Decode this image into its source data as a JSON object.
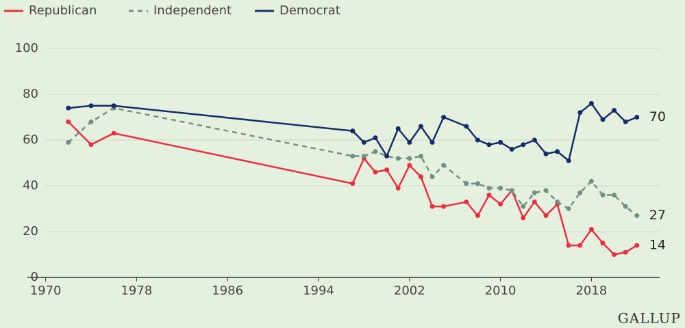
{
  "chart_data": {
    "type": "line",
    "x": [
      1972,
      1974,
      1976,
      1997,
      1998,
      1999,
      2000,
      2001,
      2002,
      2003,
      2004,
      2005,
      2007,
      2008,
      2009,
      2010,
      2011,
      2012,
      2013,
      2014,
      2015,
      2016,
      2017,
      2018,
      2019,
      2020,
      2021,
      2022
    ],
    "series": [
      {
        "name": "Republican",
        "color": "#e8303f",
        "dash": false,
        "values": [
          68,
          58,
          63,
          41,
          52,
          46,
          47,
          39,
          49,
          44,
          31,
          31,
          33,
          27,
          36,
          32,
          38,
          26,
          33,
          27,
          32,
          14,
          14,
          21,
          15,
          10,
          11,
          14
        ]
      },
      {
        "name": "Independent",
        "color": "#6f9084",
        "dash": true,
        "values": [
          59,
          68,
          74,
          53,
          53,
          55,
          53,
          52,
          52,
          53,
          44,
          49,
          41,
          41,
          39,
          39,
          38,
          31,
          37,
          38,
          33,
          30,
          37,
          42,
          36,
          36,
          31,
          27
        ]
      },
      {
        "name": "Democrat",
        "color": "#142d69",
        "dash": false,
        "values": [
          74,
          75,
          75,
          64,
          59,
          61,
          53,
          65,
          59,
          66,
          59,
          70,
          66,
          60,
          58,
          59,
          56,
          58,
          60,
          54,
          55,
          51,
          72,
          76,
          69,
          73,
          68,
          70
        ]
      }
    ],
    "xlim": [
      1969,
      2024
    ],
    "xticks": [
      1970,
      1978,
      1986,
      1994,
      2002,
      2010,
      2018
    ],
    "ylim": [
      0,
      100
    ],
    "yticks": [
      0,
      20,
      40,
      60,
      80,
      100
    ],
    "grid": true,
    "legend": "top-left",
    "source": "GALLUP"
  }
}
